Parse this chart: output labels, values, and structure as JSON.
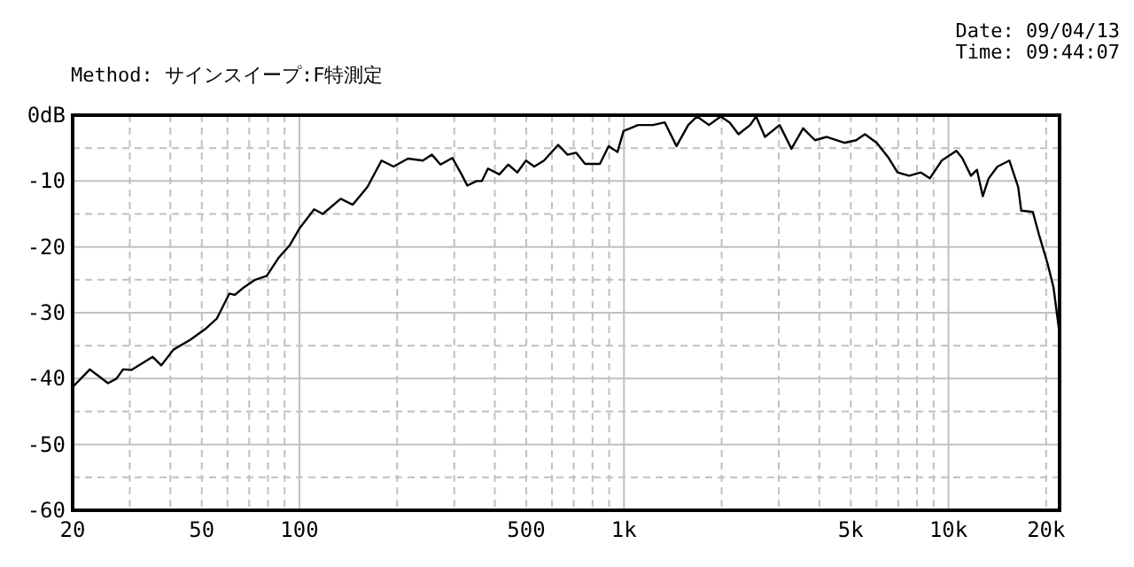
{
  "chart_data": {
    "type": "line",
    "annotations": [
      "Method: サインスイープ:F特測定",
      "Date: 09/04/13",
      "Time: 09:44:07"
    ],
    "log": "x",
    "grid": true,
    "marker": "none",
    "line_style": "solid",
    "xlim": [
      20,
      22000
    ],
    "ylim": [
      -60,
      0
    ],
    "xticks": [
      20,
      {
        "value": 30,
        "label": null
      },
      {
        "value": 40,
        "label": null
      },
      50,
      {
        "value": 60,
        "label": null
      },
      {
        "value": 70,
        "label": null
      },
      {
        "value": 80,
        "label": null
      },
      {
        "value": 90,
        "label": null
      },
      100,
      {
        "value": 200,
        "label": null
      },
      {
        "value": 300,
        "label": null
      },
      {
        "value": 400,
        "label": null
      },
      500,
      {
        "value": 600,
        "label": null
      },
      {
        "value": 700,
        "label": null
      },
      {
        "value": 800,
        "label": null
      },
      {
        "value": 900,
        "label": null
      },
      {
        "value": 1000,
        "label": "1k"
      },
      {
        "value": 2000,
        "label": null
      },
      {
        "value": 3000,
        "label": null
      },
      {
        "value": 4000,
        "label": null
      },
      {
        "value": 5000,
        "label": "5k"
      },
      {
        "value": 6000,
        "label": null
      },
      {
        "value": 7000,
        "label": null
      },
      {
        "value": 8000,
        "label": null
      },
      {
        "value": 9000,
        "label": null
      },
      {
        "value": 10000,
        "label": "10k"
      },
      {
        "value": 20000,
        "label": "20k"
      }
    ],
    "yticks": [
      {
        "value": -60,
        "label": "-60"
      },
      {
        "value": -55,
        "label": null
      },
      {
        "value": -50,
        "label": "-50"
      },
      {
        "value": -45,
        "label": null
      },
      {
        "value": -40,
        "label": "-40"
      },
      {
        "value": -35,
        "label": null
      },
      {
        "value": -30,
        "label": "-30"
      },
      {
        "value": -25,
        "label": null
      },
      {
        "value": -20,
        "label": "-20"
      },
      {
        "value": -15,
        "label": null
      },
      {
        "value": -10,
        "label": "-10"
      },
      {
        "value": -5,
        "label": null
      },
      {
        "value": 0,
        "label": "0dB"
      }
    ],
    "series": [
      {
        "color": "#000000",
        "x": [
          20,
          22.6,
          25.7,
          27.3,
          28.6,
          30.3,
          35.3,
          37.5,
          40.9,
          46.1,
          51.2,
          55.6,
          60.8,
          63.2,
          67.2,
          73,
          79.3,
          86.1,
          93.5,
          100,
          111,
          118,
          134,
          146,
          162,
          179,
          195,
          216,
          240,
          256,
          272,
          296,
          316,
          329,
          351,
          365,
          381,
          413,
          440,
          469,
          499,
          529,
          567,
          627,
          670,
          712,
          759,
          843,
          897,
          955,
          997,
          1106,
          1228,
          1336,
          1452,
          1578,
          1680,
          1828,
          1986,
          2116,
          2254,
          2448,
          2554,
          2720,
          3018,
          3282,
          3566,
          3878,
          4218,
          4780,
          5194,
          5530,
          6012,
          6542,
          6966,
          7568,
          8224,
          8762,
          9528,
          10578,
          11020,
          11730,
          12240,
          12760,
          13300,
          14160,
          15410,
          16400,
          16760,
          18200,
          19000,
          20220,
          21080,
          21900,
          21970
        ],
        "values": [
          -41.3,
          -38.6,
          -40.7,
          -40,
          -38.6,
          -38.7,
          -36.7,
          -38,
          -35.6,
          -34.1,
          -32.5,
          -30.9,
          -27.1,
          -27.3,
          -26.2,
          -25,
          -24.4,
          -21.7,
          -19.7,
          -17.2,
          -14.3,
          -15,
          -12.7,
          -13.6,
          -10.9,
          -6.9,
          -7.8,
          -6.6,
          -6.9,
          -6,
          -7.5,
          -6.5,
          -9,
          -10.7,
          -10,
          -10,
          -8.1,
          -9,
          -7.5,
          -8.7,
          -6.9,
          -7.8,
          -6.9,
          -4.5,
          -6,
          -5.7,
          -7.4,
          -7.4,
          -4.7,
          -5.6,
          -2.4,
          -1.5,
          -1.5,
          -1.1,
          -4.7,
          -1.5,
          -0.2,
          -1.5,
          -0.2,
          -1.1,
          -2.9,
          -1.5,
          -0.2,
          -3.3,
          -1.5,
          -5.1,
          -2,
          -3.8,
          -3.3,
          -4.2,
          -3.8,
          -2.9,
          -4.2,
          -6.5,
          -8.7,
          -9.2,
          -8.7,
          -9.6,
          -6.9,
          -5.4,
          -6.5,
          -9.2,
          -8.3,
          -12.3,
          -9.6,
          -7.8,
          -6.9,
          -10.9,
          -14.5,
          -14.7,
          -18.1,
          -22.6,
          -26.2,
          -32.5,
          -40.5
        ]
      }
    ]
  }
}
